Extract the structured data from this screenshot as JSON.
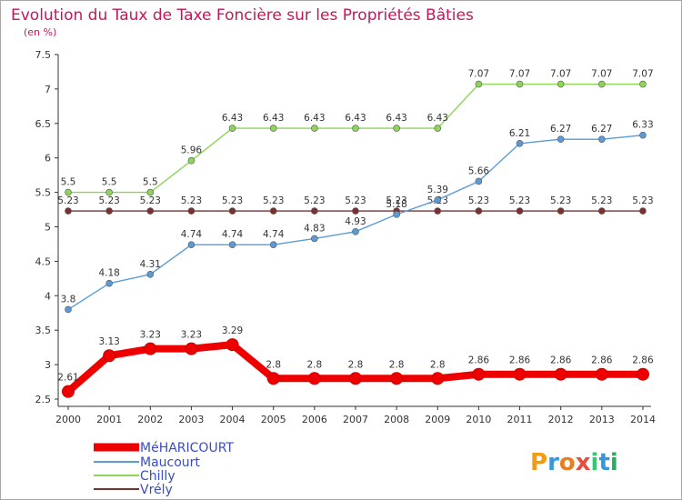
{
  "chart_data": {
    "type": "line",
    "title": "Evolution du Taux de Taxe Foncière sur les Propriétés Bâties",
    "ylabel": "(en %)",
    "xlabel": "",
    "ylim": [
      2.5,
      7.5
    ],
    "yticks": [
      "2.5",
      "3",
      "3.5",
      "4",
      "4.5",
      "5",
      "5.5",
      "6",
      "6.5",
      "7",
      "7.5"
    ],
    "categories": [
      "2000",
      "2001",
      "2002",
      "2003",
      "2004",
      "2005",
      "2006",
      "2007",
      "2008",
      "2009",
      "2010",
      "2011",
      "2012",
      "2013",
      "2014"
    ],
    "series": [
      {
        "name": "MéHARICOURT",
        "color": "#ee0000",
        "values": [
          2.61,
          3.13,
          3.23,
          3.23,
          3.29,
          2.8,
          2.8,
          2.8,
          2.8,
          2.8,
          2.86,
          2.86,
          2.86,
          2.86,
          2.86
        ],
        "labels": [
          "2.61",
          "3.13",
          "3.23",
          "3.23",
          "3.29",
          "2.8",
          "2.8",
          "2.8",
          "2.8",
          "2.8",
          "2.86",
          "2.86",
          "2.86",
          "2.86",
          "2.86"
        ]
      },
      {
        "name": "Maucourt",
        "color": "#5b9bd5",
        "values": [
          3.8,
          4.18,
          4.31,
          4.74,
          4.74,
          4.74,
          4.83,
          4.93,
          5.18,
          5.39,
          5.66,
          6.21,
          6.27,
          6.27,
          6.33
        ],
        "labels": [
          "3.8",
          "4.18",
          "4.31",
          "4.74",
          "4.74",
          "4.74",
          "4.83",
          "4.93",
          "5.18",
          "5.39",
          "5.66",
          "6.21",
          "6.27",
          "6.27",
          "6.33"
        ]
      },
      {
        "name": "Chilly",
        "color": "#8ed45a",
        "values": [
          5.5,
          5.5,
          5.5,
          5.96,
          6.43,
          6.43,
          6.43,
          6.43,
          6.43,
          6.43,
          7.07,
          7.07,
          7.07,
          7.07,
          7.07
        ],
        "labels": [
          "5.5",
          "5.5",
          "5.5",
          "5.96",
          "6.43",
          "6.43",
          "6.43",
          "6.43",
          "6.43",
          "6.43",
          "7.07",
          "7.07",
          "7.07",
          "7.07",
          "7.07"
        ]
      },
      {
        "name": "Vrély",
        "color": "#7b3030",
        "values": [
          5.23,
          5.23,
          5.23,
          5.23,
          5.23,
          5.23,
          5.23,
          5.23,
          5.23,
          5.23,
          5.23,
          5.23,
          5.23,
          5.23,
          5.23
        ],
        "labels": [
          "5.23",
          "5.23",
          "5.23",
          "5.23",
          "5.23",
          "5.23",
          "5.23",
          "5.23",
          "5.23",
          "5.23",
          "5.23",
          "5.23",
          "5.23",
          "5.23",
          "5.23"
        ]
      }
    ],
    "grid": false,
    "legend": "bottom-left"
  },
  "brand": {
    "text": "Proxiti"
  }
}
